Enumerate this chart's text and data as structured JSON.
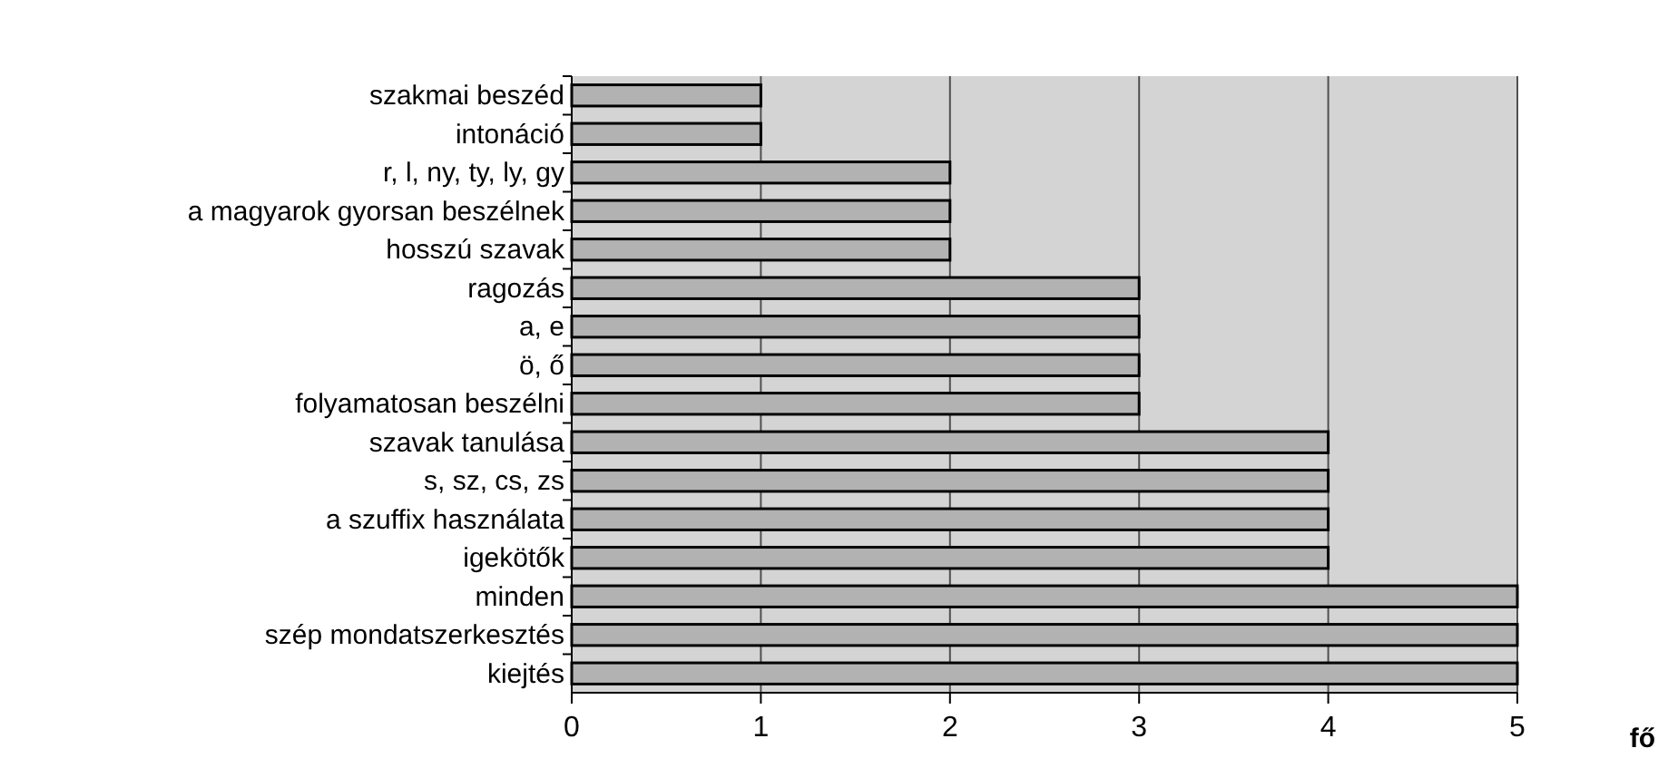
{
  "chart_data": {
    "type": "bar",
    "orientation": "horizontal",
    "xlabel": "fő",
    "categories": [
      "szakmai beszéd",
      "intonáció",
      "r, l, ny, ty, ly, gy",
      "a magyarok gyorsan beszélnek",
      "hosszú szavak",
      "ragozás",
      "a, e",
      "ö, ő",
      "folyamatosan beszélni",
      "szavak tanulása",
      "s, sz, cs, zs",
      "a szuffix használata",
      "igekötők",
      "minden",
      "szép mondatszerkesztés",
      "kiejtés"
    ],
    "values": [
      1,
      1,
      2,
      2,
      2,
      3,
      3,
      3,
      3,
      4,
      4,
      4,
      4,
      5,
      5,
      5
    ],
    "color": "#b2b2b2",
    "xlim": [
      0,
      5
    ],
    "xticks": [
      0,
      1,
      2,
      3,
      4,
      5
    ],
    "grid": "x"
  }
}
